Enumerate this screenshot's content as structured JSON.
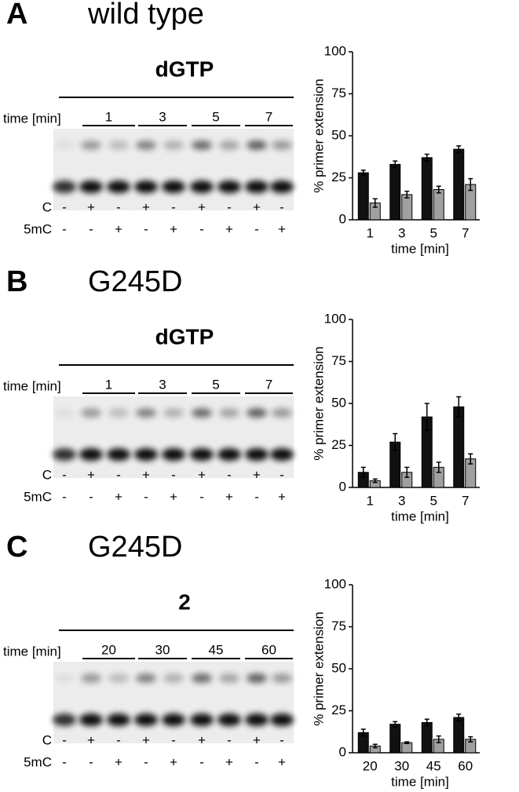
{
  "panels": [
    {
      "label": "A",
      "title": "wild type"
    },
    {
      "label": "B",
      "title": "G245D"
    },
    {
      "label": "C",
      "title": "G245D"
    }
  ],
  "gels": [
    {
      "reagent": "dGTP",
      "time_label": "time [min]",
      "times": [
        "1",
        "3",
        "5",
        "7"
      ],
      "row_labels": [
        "C",
        "5mC"
      ],
      "c_signs": [
        "-",
        "+",
        "-",
        "+",
        "-",
        "+",
        "-",
        "+",
        "-"
      ],
      "mc_signs": [
        "-",
        "-",
        "+",
        "-",
        "+",
        "-",
        "+",
        "-",
        "+"
      ]
    },
    {
      "reagent": "dGTP",
      "time_label": "time [min]",
      "times": [
        "1",
        "3",
        "5",
        "7"
      ],
      "row_labels": [
        "C",
        "5mC"
      ],
      "c_signs": [
        "-",
        "+",
        "-",
        "+",
        "-",
        "+",
        "-",
        "+",
        "-"
      ],
      "mc_signs": [
        "-",
        "-",
        "+",
        "-",
        "+",
        "-",
        "+",
        "-",
        "+"
      ]
    },
    {
      "reagent": "2",
      "time_label": "time [min]",
      "times": [
        "20",
        "30",
        "45",
        "60"
      ],
      "row_labels": [
        "C",
        "5mC"
      ],
      "c_signs": [
        "-",
        "+",
        "-",
        "+",
        "-",
        "+",
        "-",
        "+",
        "-"
      ],
      "mc_signs": [
        "-",
        "-",
        "+",
        "-",
        "+",
        "-",
        "+",
        "-",
        "+"
      ]
    }
  ],
  "chart_data": [
    {
      "type": "bar",
      "ylabel": "% primer extension",
      "xlabel": "time [min]",
      "categories": [
        "1",
        "3",
        "5",
        "7"
      ],
      "ylim": [
        0,
        100
      ],
      "yticks": [
        0,
        25,
        50,
        75,
        100
      ],
      "series": [
        {
          "color": "#111111",
          "values": [
            28,
            33,
            37,
            42
          ],
          "errors": [
            1.5,
            2,
            2,
            2
          ]
        },
        {
          "color": "#a0a0a0",
          "values": [
            10,
            15,
            18,
            21
          ],
          "errors": [
            2.5,
            2,
            2,
            3.5
          ]
        }
      ]
    },
    {
      "type": "bar",
      "ylabel": "% primer extension",
      "xlabel": "time [min]",
      "categories": [
        "1",
        "3",
        "5",
        "7"
      ],
      "ylim": [
        0,
        100
      ],
      "yticks": [
        0,
        25,
        50,
        75,
        100
      ],
      "series": [
        {
          "color": "#111111",
          "values": [
            9,
            27,
            42,
            48
          ],
          "errors": [
            3,
            5,
            8,
            6
          ]
        },
        {
          "color": "#a0a0a0",
          "values": [
            4,
            9,
            12,
            17
          ],
          "errors": [
            1,
            3,
            3,
            3
          ]
        }
      ]
    },
    {
      "type": "bar",
      "ylabel": "% primer extension",
      "xlabel": "time [min]",
      "categories": [
        "20",
        "30",
        "45",
        "60"
      ],
      "ylim": [
        0,
        100
      ],
      "yticks": [
        0,
        25,
        50,
        75,
        100
      ],
      "series": [
        {
          "color": "#111111",
          "values": [
            12,
            17,
            18,
            21
          ],
          "errors": [
            2,
            1.5,
            2,
            2
          ]
        },
        {
          "color": "#a0a0a0",
          "values": [
            4,
            6,
            8,
            8
          ],
          "errors": [
            1,
            0.5,
            2,
            1.5
          ]
        }
      ]
    }
  ]
}
